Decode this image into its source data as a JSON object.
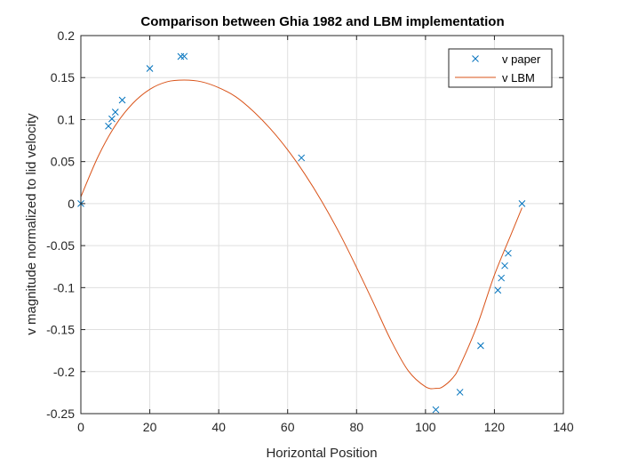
{
  "chart_data": {
    "type": "line",
    "title": "Comparison between Ghia 1982 and LBM implementation",
    "xlabel": "Horizontal Position",
    "ylabel": "v magnitude normalized to lid velocity",
    "xlim": [
      0,
      140
    ],
    "ylim": [
      -0.25,
      0.2
    ],
    "xticks": [
      0,
      20,
      40,
      60,
      80,
      100,
      120,
      140
    ],
    "yticks": [
      -0.25,
      -0.2,
      -0.15,
      -0.1,
      -0.05,
      0,
      0.05,
      0.1,
      0.15,
      0.2
    ],
    "grid": true,
    "legend_position": "top-right",
    "series": [
      {
        "name": "v paper",
        "marker": "x",
        "color": "#0072BD",
        "x": [
          0,
          8,
          9,
          10,
          12,
          20,
          29,
          30,
          64,
          103,
          110,
          116,
          121,
          122,
          123,
          124,
          128
        ],
        "y": [
          0,
          0.0923,
          0.1009,
          0.1089,
          0.1232,
          0.1608,
          0.1751,
          0.1753,
          0.0545,
          -0.2453,
          -0.2245,
          -0.1691,
          -0.1031,
          -0.0886,
          -0.0739,
          -0.0591,
          0
        ]
      },
      {
        "name": "v LBM",
        "marker": "none",
        "color": "#D95319",
        "x": [
          0,
          5,
          10,
          15,
          20,
          25,
          30,
          35,
          40,
          45,
          50,
          55,
          60,
          65,
          70,
          75,
          80,
          85,
          90,
          95,
          100,
          103,
          105,
          108,
          110,
          115,
          120,
          125,
          128
        ],
        "y": [
          0.008,
          0.056,
          0.093,
          0.119,
          0.136,
          0.145,
          0.147,
          0.145,
          0.138,
          0.127,
          0.11,
          0.089,
          0.064,
          0.035,
          0.002,
          -0.035,
          -0.076,
          -0.119,
          -0.163,
          -0.199,
          -0.218,
          -0.22,
          -0.218,
          -0.207,
          -0.193,
          -0.145,
          -0.085,
          -0.035,
          -0.005
        ]
      }
    ]
  }
}
